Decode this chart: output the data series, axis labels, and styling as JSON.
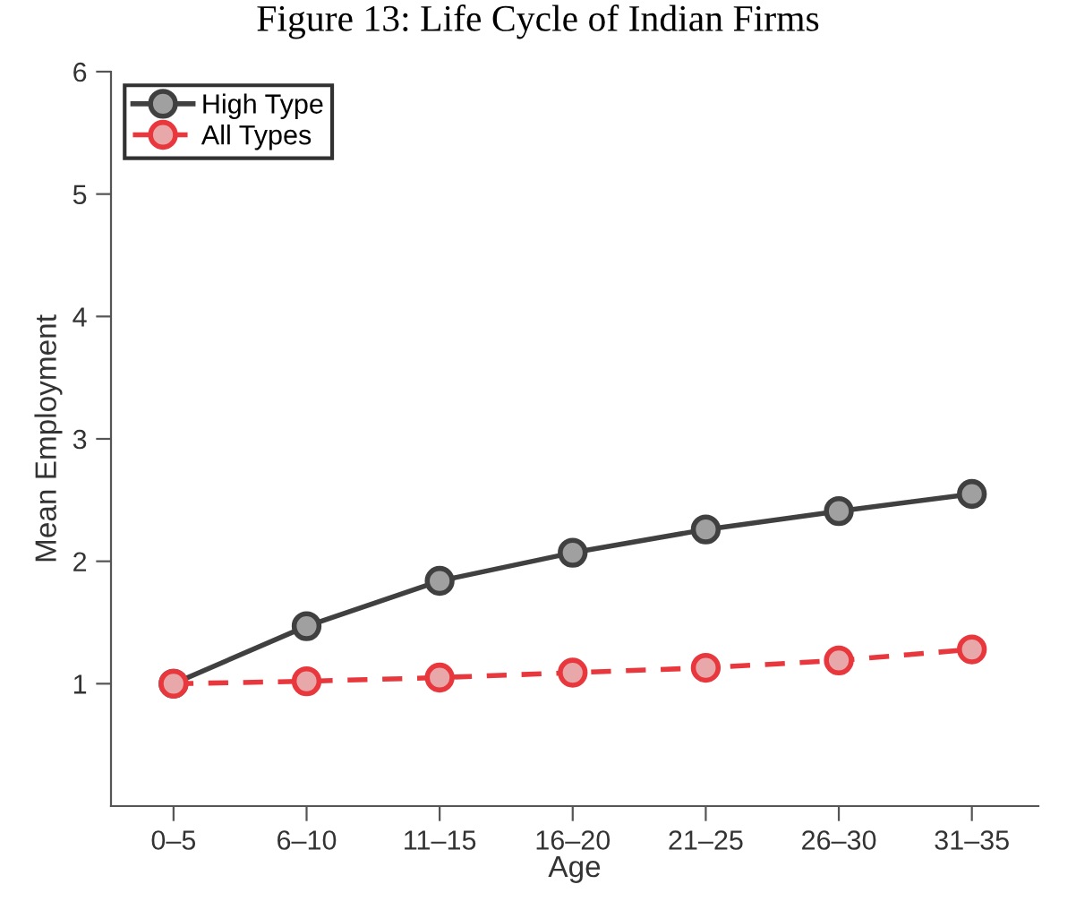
{
  "chart_data": {
    "type": "line",
    "title": "Figure 13: Life Cycle of Indian Firms",
    "xlabel": "Age",
    "ylabel": "Mean Employment",
    "categories": [
      "0–5",
      "6–10",
      "11–15",
      "16–20",
      "21–25",
      "26–30",
      "31–35"
    ],
    "series": [
      {
        "name": "High Type",
        "color": "#404040",
        "values": [
          1.0,
          1.47,
          1.84,
          2.07,
          2.26,
          2.41,
          2.55
        ],
        "line_style": "solid"
      },
      {
        "name": "All Types",
        "color": "#e8383d",
        "values": [
          1.0,
          1.02,
          1.05,
          1.09,
          1.13,
          1.19,
          1.28
        ],
        "line_style": "dashed"
      }
    ],
    "ylim": [
      0,
      6
    ],
    "yticks": [
      1,
      2,
      3,
      4,
      5,
      6
    ],
    "marker": "circle",
    "legend": "top left",
    "grid": false
  }
}
